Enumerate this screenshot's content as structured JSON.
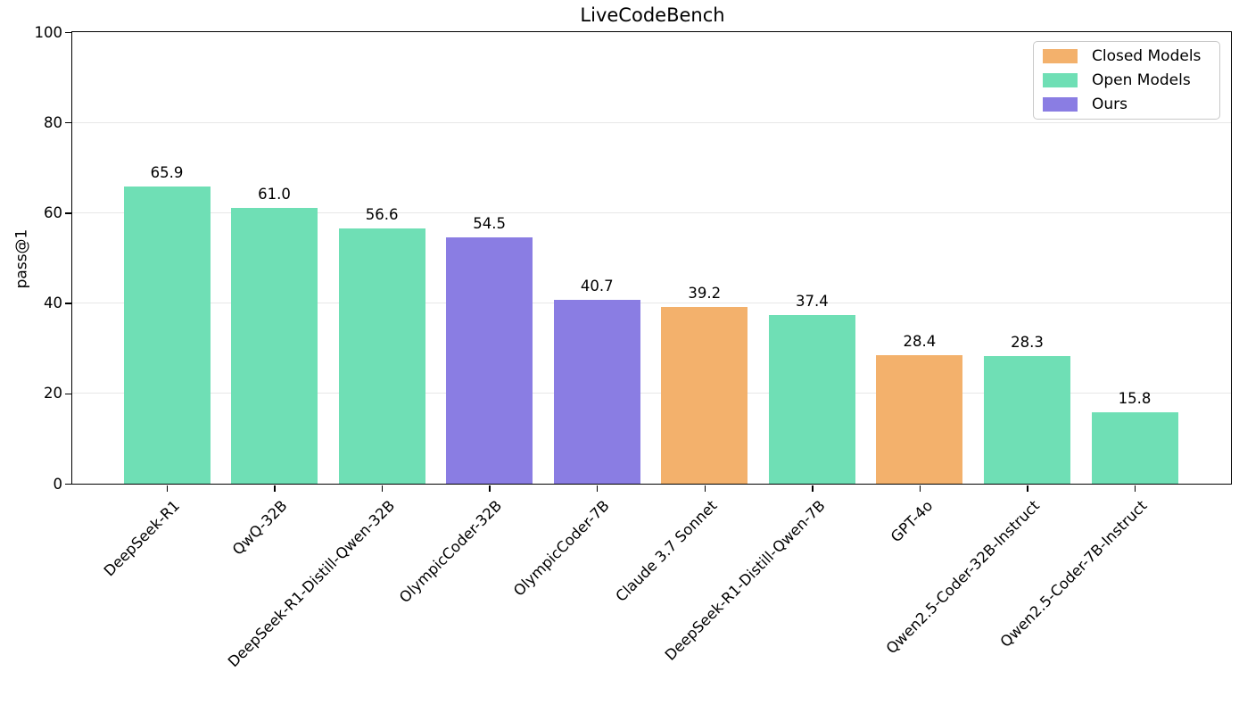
{
  "chart_data": {
    "type": "bar",
    "title": "LiveCodeBench",
    "xlabel": "",
    "ylabel": "pass@1",
    "ylim": [
      0,
      100
    ],
    "yticks": [
      0,
      20,
      40,
      60,
      80,
      100
    ],
    "grid": "horizontal-light",
    "legend_position": "upper right",
    "categories": [
      "DeepSeek-R1",
      "QwQ-32B",
      "DeepSeek-R1-Distill-Qwen-32B",
      "OlympicCoder-32B",
      "OlympicCoder-7B",
      "Claude 3.7 Sonnet",
      "DeepSeek-R1-Distill-Qwen-7B",
      "GPT-4o",
      "Qwen2.5-Coder-32B-Instruct",
      "Qwen2.5-Coder-7B-Instruct"
    ],
    "values": [
      65.9,
      61.0,
      56.6,
      54.5,
      40.7,
      39.2,
      37.4,
      28.4,
      28.3,
      15.8
    ],
    "bar_value_labels": [
      "65.9",
      "61.0",
      "56.6",
      "54.5",
      "40.7",
      "39.2",
      "37.4",
      "28.4",
      "28.3",
      "15.8"
    ],
    "groups": [
      "open",
      "open",
      "open",
      "ours",
      "ours",
      "closed",
      "open",
      "closed",
      "open",
      "open"
    ],
    "group_colors": {
      "closed": "#f3b16c",
      "open": "#6fdfb5",
      "ours": "#8a7de3"
    },
    "legend": [
      {
        "label": "Closed Models",
        "group": "closed",
        "color": "#f3b16c"
      },
      {
        "label": "Open Models",
        "group": "open",
        "color": "#6fdfb5"
      },
      {
        "label": "Ours",
        "group": "ours",
        "color": "#8a7de3"
      }
    ],
    "axis_color": "#000000",
    "gridline_color": "#e7e7e7",
    "background_color": "#ffffff"
  }
}
